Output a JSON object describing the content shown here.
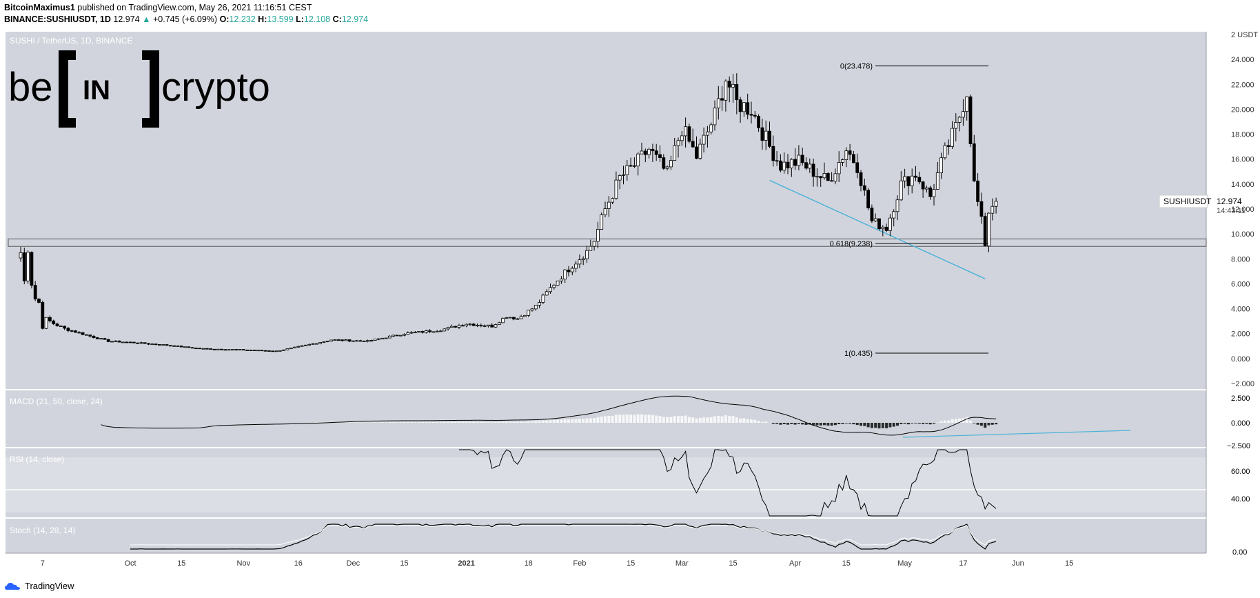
{
  "header": {
    "author": "BitcoinMaximus1",
    "published_text": "published on TradingView.com, May 26, 2021 11:16:51 CEST",
    "symbol_line_prefix": "BINANCE:SUSHIUSDT, 1D",
    "last": "12.974",
    "change": "+0.745 (+6.09%)",
    "o_label": "O:",
    "o_value": "12.232",
    "h_label": "H:",
    "h_value": "13.599",
    "l_label": "L:",
    "l_value": "12.108",
    "c_label": "C:",
    "c_value": "12.974"
  },
  "brand": {
    "logo_text_left": "be",
    "logo_box_text": "IN",
    "logo_text_right": "crypto",
    "footer": "TradingView"
  },
  "colors": {
    "background": "#d1d4dc",
    "up": "#ffffff",
    "down": "#000000",
    "trendline": "#4fb3d9",
    "accent": "#26a69a"
  },
  "chart_data": [
    {
      "type": "candlestick",
      "title": "SUSHI / TetherUS, 1D, BINANCE",
      "symbol": "SUSHIUSDT",
      "last_price": "12.974",
      "countdown": "14:43:11",
      "y_unit": "USDT",
      "ylim": [
        -2,
        26
      ],
      "y_ticks": [
        "2 USDT",
        "24.000",
        "22.000",
        "20.000",
        "18.000",
        "16.000",
        "14.000",
        "12.000",
        "10.000",
        "8.000",
        "6.000",
        "4.000",
        "2.000",
        "0.000",
        "−2.000"
      ],
      "x_ticks": [
        "7",
        "Oct",
        "15",
        "Nov",
        "16",
        "Dec",
        "15",
        "2021",
        "18",
        "Feb",
        "15",
        "Mar",
        "15",
        "Apr",
        "15",
        "May",
        "17",
        "Jun",
        "15"
      ],
      "fib_levels": [
        {
          "label": "0(23.478)",
          "value": 23.478
        },
        {
          "label": "0.618(9.238)",
          "value": 9.238
        },
        {
          "label": "1(0.435)",
          "value": 0.435
        }
      ],
      "support_zone": [
        9.0,
        9.6
      ],
      "trendline": {
        "from": [
          "2021-03-25",
          14.3
        ],
        "to": [
          "2021-05-23",
          6.4
        ]
      },
      "price_path": [
        [
          "2020-09-01",
          8.5
        ],
        [
          "2020-09-02",
          6.2
        ],
        [
          "2020-09-03",
          8.8
        ],
        [
          "2020-09-04",
          6.0
        ],
        [
          "2020-09-05",
          4.8
        ],
        [
          "2020-09-06",
          4.5
        ],
        [
          "2020-09-07",
          2.5
        ],
        [
          "2020-09-08",
          3.2
        ],
        [
          "2020-09-10",
          2.8
        ],
        [
          "2020-09-13",
          2.4
        ],
        [
          "2020-09-20",
          1.8
        ],
        [
          "2020-09-25",
          1.4
        ],
        [
          "2020-10-01",
          1.3
        ],
        [
          "2020-10-10",
          1.1
        ],
        [
          "2020-10-20",
          0.8
        ],
        [
          "2020-11-01",
          0.7
        ],
        [
          "2020-11-10",
          0.6
        ],
        [
          "2020-11-17",
          1.0
        ],
        [
          "2020-11-25",
          1.5
        ],
        [
          "2020-12-05",
          1.4
        ],
        [
          "2020-12-15",
          2.0
        ],
        [
          "2020-12-25",
          2.3
        ],
        [
          "2021-01-01",
          2.8
        ],
        [
          "2021-01-08",
          2.6
        ],
        [
          "2021-01-12",
          3.4
        ],
        [
          "2021-01-15",
          3.2
        ],
        [
          "2021-01-20",
          4.2
        ],
        [
          "2021-01-25",
          6.0
        ],
        [
          "2021-01-30",
          7.5
        ],
        [
          "2021-02-03",
          8.6
        ],
        [
          "2021-02-05",
          9.5
        ],
        [
          "2021-02-08",
          12.0
        ],
        [
          "2021-02-12",
          14.5
        ],
        [
          "2021-02-16",
          15.5
        ],
        [
          "2021-02-20",
          16.8
        ],
        [
          "2021-02-25",
          14.8
        ],
        [
          "2021-03-01",
          18.5
        ],
        [
          "2021-03-05",
          16.2
        ],
        [
          "2021-03-10",
          19.5
        ],
        [
          "2021-03-13",
          22.5
        ],
        [
          "2021-03-16",
          20.5
        ],
        [
          "2021-03-20",
          20.0
        ],
        [
          "2021-03-25",
          17.0
        ],
        [
          "2021-03-28",
          15.5
        ],
        [
          "2021-04-02",
          15.8
        ],
        [
          "2021-04-06",
          15.0
        ],
        [
          "2021-04-10",
          14.2
        ],
        [
          "2021-04-15",
          16.8
        ],
        [
          "2021-04-18",
          15.5
        ],
        [
          "2021-04-22",
          11.0
        ],
        [
          "2021-04-26",
          10.5
        ],
        [
          "2021-04-30",
          14.0
        ],
        [
          "2021-05-04",
          14.8
        ],
        [
          "2021-05-08",
          13.0
        ],
        [
          "2021-05-12",
          16.5
        ],
        [
          "2021-05-15",
          18.5
        ],
        [
          "2021-05-18",
          21.5
        ],
        [
          "2021-05-20",
          14.0
        ],
        [
          "2021-05-22",
          11.0
        ],
        [
          "2021-05-23",
          9.2
        ],
        [
          "2021-05-24",
          11.8
        ],
        [
          "2021-05-26",
          12.97
        ]
      ]
    },
    {
      "type": "line",
      "title": "MACD (21, 50, close, 24)",
      "ylim": [
        -2.5,
        2.5
      ],
      "y_ticks": [
        "2.500",
        "0.000",
        "−2.500"
      ]
    },
    {
      "type": "line",
      "title": "RSI (14, close)",
      "y_ticks": [
        "60.00",
        "40.00"
      ]
    },
    {
      "type": "line",
      "title": "Stoch (14, 28, 14)",
      "y_ticks": [
        "0.00"
      ]
    }
  ]
}
